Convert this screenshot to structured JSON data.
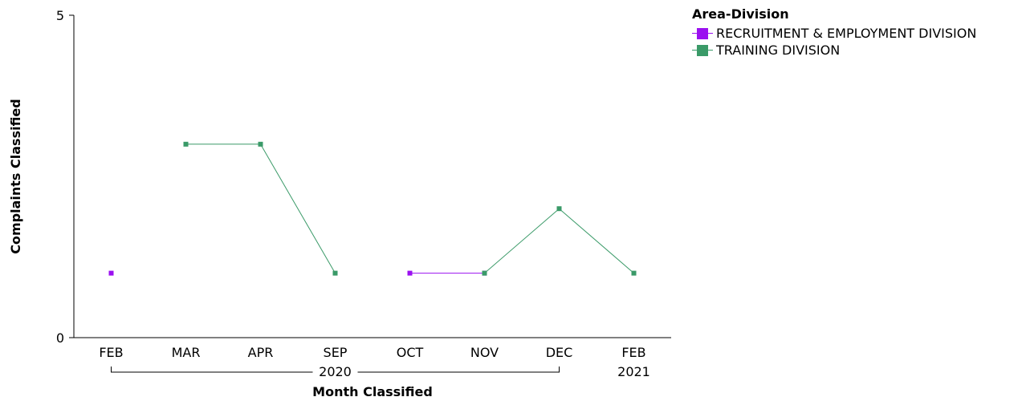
{
  "chart_data": {
    "type": "line",
    "xlabel": "Month Classified",
    "ylabel": "Complaints Classified",
    "ylim": [
      0,
      5
    ],
    "y_ticks": [
      "0",
      "5"
    ],
    "categories": [
      "FEB",
      "MAR",
      "APR",
      "SEP",
      "OCT",
      "NOV",
      "DEC",
      "FEB"
    ],
    "year_groups": [
      {
        "label": "2020",
        "from": 0,
        "to": 6
      },
      {
        "label": "2021",
        "from": 7,
        "to": 7
      }
    ],
    "legend": {
      "title": "Area-Division",
      "placement": "top-right"
    },
    "series": [
      {
        "name": "RECRUITMENT & EMPLOYMENT DIVISION",
        "color": "#9b10f0",
        "values": [
          1,
          null,
          null,
          null,
          1,
          1,
          null,
          null
        ]
      },
      {
        "name": "TRAINING DIVISION",
        "color": "#3a9a68",
        "values": [
          null,
          3,
          3,
          1,
          null,
          1,
          2,
          1
        ]
      }
    ]
  }
}
